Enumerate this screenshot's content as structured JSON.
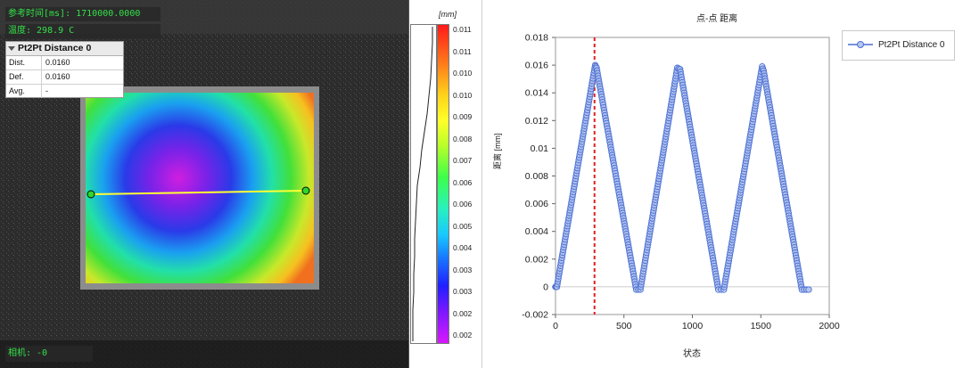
{
  "viewer": {
    "ref_time": "参考时间[ms]: 1710000.0000",
    "temperature": "温度: 298.9 C",
    "camera": "相机: -0",
    "panel": {
      "title": "Pt2Pt Distance 0",
      "rows": [
        {
          "key": "Dist.",
          "value": "0.0160"
        },
        {
          "key": "Def.",
          "value": "0.0160"
        },
        {
          "key": "Avg.",
          "value": "-"
        }
      ]
    },
    "colorbar": {
      "unit": "[mm]",
      "ticks": [
        "0.011",
        "0.011",
        "0.010",
        "0.010",
        "0.009",
        "0.008",
        "0.007",
        "0.006",
        "0.006",
        "0.005",
        "0.004",
        "0.003",
        "0.003",
        "0.002",
        "0.002"
      ]
    }
  },
  "chart_data": {
    "type": "scatter",
    "title": "点-点 距离",
    "xlabel": "状态",
    "ylabel": "距离 [mm]",
    "xlim": [
      0,
      2000
    ],
    "ylim": [
      -0.002,
      0.018
    ],
    "x_ticks": [
      "0",
      "500",
      "1000",
      "1500",
      "2000"
    ],
    "y_ticks": [
      "0.018",
      "0.016",
      "0.014",
      "0.012",
      "0.01",
      "0.008",
      "0.006",
      "0.004",
      "0.002",
      "0",
      "-0.002"
    ],
    "legend": "Pt2Pt Distance 0",
    "series_color": "#4a6fd4",
    "marker_line": {
      "x": 285,
      "color": "#e02020"
    },
    "series": [
      {
        "name": "Pt2Pt Distance 0",
        "x": [
          0,
          10,
          290,
          300,
          590,
          620,
          890,
          910,
          1190,
          1230,
          1510,
          1520,
          1800,
          1850
        ],
        "y": [
          0,
          0,
          0.016,
          0.0158,
          -0.0002,
          -0.0002,
          0.0158,
          0.0157,
          -0.0002,
          -0.0002,
          0.0159,
          0.0156,
          -0.0002,
          -0.0002
        ]
      }
    ]
  },
  "colors": {
    "line_color": "#4a6fd4",
    "marker_color": "#e02020",
    "overlay_text": "#34e04a"
  }
}
